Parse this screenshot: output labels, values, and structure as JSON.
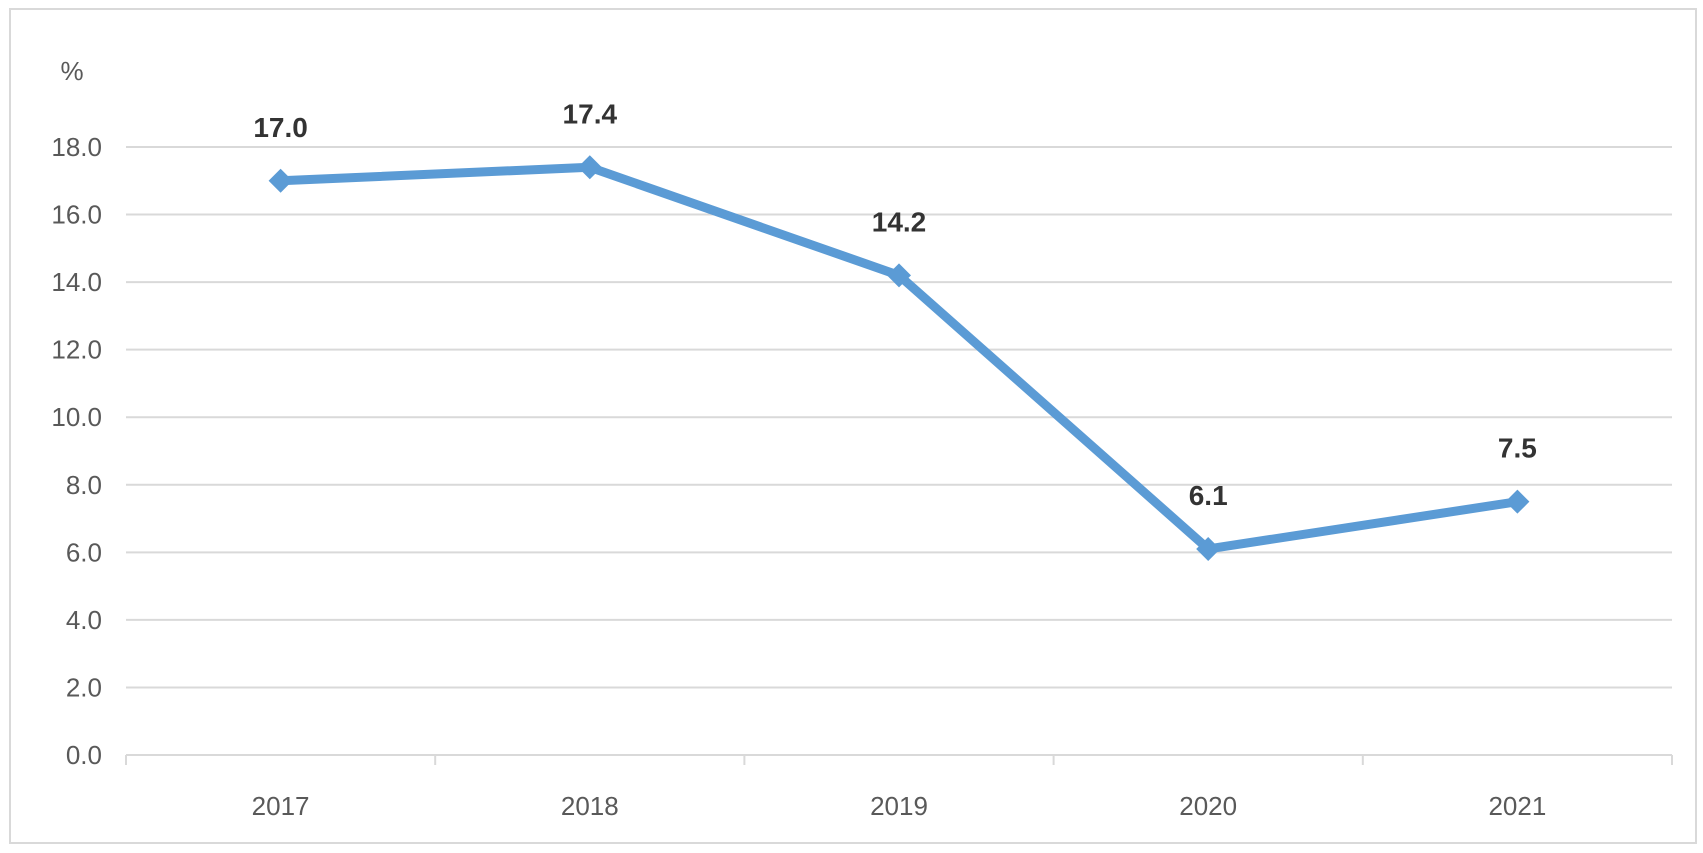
{
  "chart_data": {
    "type": "line",
    "unit": "%",
    "categories": [
      "2017",
      "2018",
      "2019",
      "2020",
      "2021"
    ],
    "series": [
      {
        "values": [
          17.0,
          17.4,
          14.2,
          6.1,
          7.5
        ]
      }
    ],
    "data_labels": [
      "17.0",
      "17.4",
      "14.2",
      "6.1",
      "7.5"
    ],
    "y_ticks": [
      "0.0",
      "2.0",
      "4.0",
      "6.0",
      "8.0",
      "10.0",
      "12.0",
      "14.0",
      "16.0",
      "18.0"
    ],
    "ylim": [
      0,
      18
    ],
    "grid": true,
    "legend": "none",
    "colors": {
      "line": "#5b9bd5",
      "grid": "#d9d9d9",
      "axis_text": "#595959",
      "label_text": "#333333"
    }
  }
}
